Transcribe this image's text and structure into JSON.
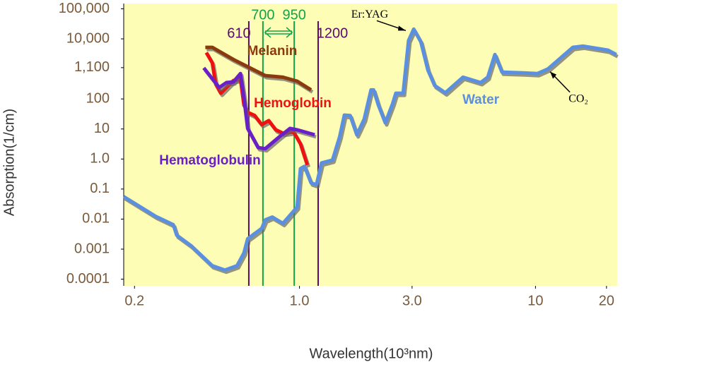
{
  "chart_data": {
    "type": "line",
    "x_label": "Wavelength(10³nm)",
    "y_label": "Absorption(1/cm)",
    "xscale": "log",
    "yscale": "log",
    "grid": false,
    "xlim": [
      0.18,
      22.2
    ],
    "ylim": [
      6e-05,
      150000
    ],
    "xticks": [
      0.2,
      {
        "value": 1,
        "label": "1.0"
      },
      {
        "value": 3,
        "label": "3.0"
      },
      10,
      20
    ],
    "yticks": [
      {
        "value": 100000,
        "label": "100,000"
      },
      {
        "value": 10000,
        "label": "10,000"
      },
      {
        "value": 1100,
        "label": "1,100"
      },
      100,
      10,
      {
        "value": 1,
        "label": "1.0"
      },
      0.1,
      0.01,
      0.001,
      0.0001
    ],
    "series": [
      {
        "name": "Water",
        "color": "#5b8fe0",
        "x": [
          0.18,
          0.246,
          0.292,
          0.302,
          0.347,
          0.427,
          0.483,
          0.544,
          0.582,
          0.603,
          0.692,
          0.716,
          0.767,
          0.851,
          0.977,
          1.01,
          1.05,
          1.12,
          1.18,
          1.24,
          1.38,
          1.48,
          1.55,
          1.64,
          1.75,
          1.88,
          2.01,
          2.06,
          2.16,
          2.31,
          2.48,
          2.56,
          2.75,
          2.9,
          3.05,
          3.27,
          3.5,
          3.74,
          4.15,
          4.93,
          5.86,
          6.28,
          6.73,
          7.21,
          8.87,
          10.2,
          11.3,
          14.4,
          15.9,
          20.3,
          22
        ],
        "values": [
          0.056,
          0.0123,
          0.0065,
          0.0029,
          0.0013,
          0.00028,
          0.0002,
          0.00028,
          0.00075,
          0.0022,
          0.0049,
          0.0094,
          0.0117,
          0.0072,
          0.025,
          0.48,
          0.57,
          0.16,
          0.14,
          0.74,
          0.92,
          5.5,
          29,
          28,
          6.4,
          21,
          200,
          200,
          62,
          16,
          69,
          155,
          155,
          8800,
          21000,
          7900,
          920,
          280,
          160,
          530,
          350,
          530,
          3000,
          780,
          740,
          700,
          1000,
          5200,
          5700,
          4200,
          3000
        ]
      },
      {
        "name": "Melanin",
        "color": "#8b3a10",
        "x": [
          0.399,
          0.427,
          0.525,
          0.716,
          0.851,
          0.977,
          1.12
        ],
        "values": [
          5200,
          5200,
          2060,
          600,
          530,
          390,
          200
        ]
      },
      {
        "name": "Hemoglobin",
        "color": "#ee1111",
        "x": [
          0.403,
          0.427,
          0.442,
          0.464,
          0.49,
          0.525,
          0.562,
          0.582,
          0.603,
          0.646,
          0.692,
          0.741,
          0.794,
          0.851,
          0.944,
          1.01,
          1.08
        ],
        "values": [
          3500,
          1600,
          310,
          155,
          240,
          410,
          455,
          62,
          36,
          28,
          14,
          19,
          9.4,
          7.2,
          8.0,
          3.2,
          0.63
        ]
      },
      {
        "name": "Hematoglobulin",
        "color": "#6a1fc8",
        "x": [
          0.393,
          0.457,
          0.49,
          0.525,
          0.562,
          0.582,
          0.603,
          0.668,
          0.716,
          0.822,
          0.912,
          0.977,
          1.16
        ],
        "values": [
          1080,
          240,
          350,
          370,
          700,
          106,
          10.4,
          2.4,
          2.2,
          5.5,
          10.4,
          9.4,
          6.4
        ]
      }
    ],
    "vlines": [
      {
        "value": 0.61,
        "label": "610",
        "color": "#5a0a6a"
      },
      {
        "value": 0.7,
        "label": "700",
        "color": "#13a34a"
      },
      {
        "value": 0.95,
        "label": "950",
        "color": "#13a34a"
      },
      {
        "value": 1.2,
        "label": "1200",
        "color": "#5a0a6a"
      }
    ],
    "annotations": [
      {
        "text": "Er:YAG",
        "x": 2.9,
        "y": 21000
      },
      {
        "text": "CO₂",
        "x": 11.3,
        "y": 1000
      }
    ]
  }
}
